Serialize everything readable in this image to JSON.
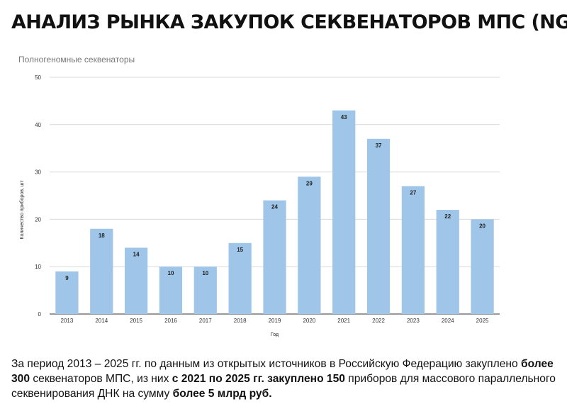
{
  "title": "АНАЛИЗ РЫНКА ЗАКУПОК СЕКВЕНАТОРОВ МПС (NGS)",
  "chart_data": {
    "type": "bar",
    "subtitle": "Полногеномные секвенаторы",
    "xlabel": "Год",
    "ylabel": "Количество приборов, шт",
    "categories": [
      "2013",
      "2014",
      "2015",
      "2016",
      "2017",
      "2018",
      "2019",
      "2020",
      "2021",
      "2022",
      "2023",
      "2024",
      "2025"
    ],
    "values": [
      9,
      18,
      14,
      10,
      10,
      15,
      24,
      29,
      43,
      37,
      27,
      22,
      20
    ],
    "ylim": [
      0,
      50
    ],
    "yticks": [
      0,
      10,
      20,
      30,
      40,
      50
    ],
    "grid": true,
    "data_labels": true,
    "bar_color": "#9fc5e8"
  },
  "caption": {
    "p1": "За период 2013 – 2025 гг. по данным из открытых источников в Российскую Федерацию закуплено ",
    "b1": "более 300",
    "p2": " секвенаторов МПС, из них ",
    "b2": "с 2021 по 2025 гг. закуплено 150",
    "p3": " приборов для массового параллельного секвенирования ДНК на сумму ",
    "b3": "более 5 млрд руб."
  }
}
